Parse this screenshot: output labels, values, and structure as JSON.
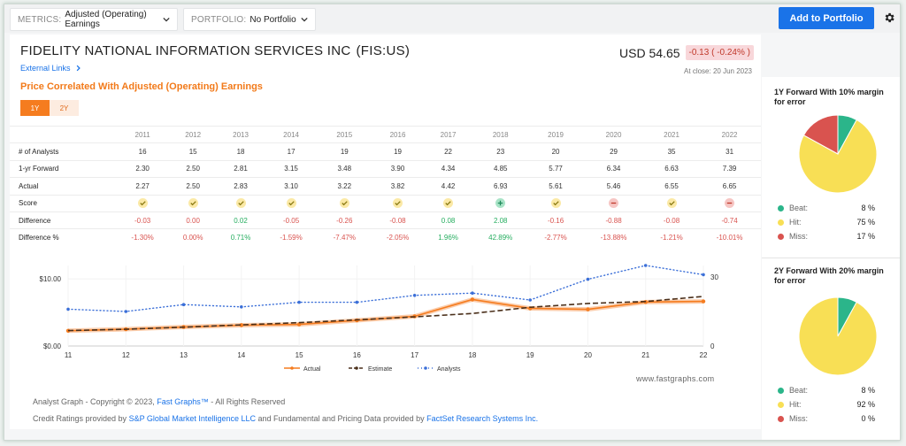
{
  "toolbar": {
    "metrics_label": "METRICS:",
    "metrics_value": "Adjusted (Operating) Earnings",
    "portfolio_label": "PORTFOLIO:",
    "portfolio_value": "No Portfolio",
    "add_button": "Add to Portfolio"
  },
  "header": {
    "company": "FIDELITY NATIONAL INFORMATION SERVICES INC",
    "ticker": "(FIS:US)",
    "external_links": "External Links",
    "price": "USD 54.65",
    "change": "-0.13 ( -0.24% )",
    "close": "At close: 20 Jun 2023"
  },
  "subtitle": "Price Correlated With Adjusted (Operating) Earnings",
  "tabs": [
    {
      "label": "1Y",
      "active": true
    },
    {
      "label": "2Y",
      "active": false
    }
  ],
  "table": {
    "years": [
      "2011",
      "2012",
      "2013",
      "2014",
      "2015",
      "2016",
      "2017",
      "2018",
      "2019",
      "2020",
      "2021",
      "2022"
    ],
    "rows": [
      {
        "label": "# of Analysts",
        "values": [
          "16",
          "15",
          "18",
          "17",
          "19",
          "19",
          "22",
          "23",
          "20",
          "29",
          "35",
          "31"
        ]
      },
      {
        "label": "1-yr Forward",
        "values": [
          "2.30",
          "2.50",
          "2.81",
          "3.15",
          "3.48",
          "3.90",
          "4.34",
          "4.85",
          "5.77",
          "6.34",
          "6.63",
          "7.39"
        ]
      },
      {
        "label": "Actual",
        "values": [
          "2.27",
          "2.50",
          "2.83",
          "3.10",
          "3.22",
          "3.82",
          "4.42",
          "6.93",
          "5.61",
          "5.46",
          "6.55",
          "6.65"
        ]
      }
    ],
    "score_label": "Score",
    "scores": [
      "hit",
      "hit",
      "hit",
      "hit",
      "hit",
      "hit",
      "hit",
      "beat",
      "hit",
      "miss",
      "hit",
      "miss"
    ],
    "difference_label": "Difference",
    "difference": [
      "-0.03",
      "0.00",
      "0.02",
      "-0.05",
      "-0.26",
      "-0.08",
      "0.08",
      "2.08",
      "-0.16",
      "-0.88",
      "-0.08",
      "-0.74"
    ],
    "difference_pct_label": "Difference %",
    "difference_pct": [
      "-1.30%",
      "0.00%",
      "0.71%",
      "-1.59%",
      "-7.47%",
      "-2.05%",
      "1.96%",
      "42.89%",
      "-2.77%",
      "-13.88%",
      "-1.21%",
      "-10.01%"
    ]
  },
  "chart_data": {
    "type": "line",
    "x": [
      "11",
      "12",
      "13",
      "14",
      "15",
      "16",
      "17",
      "18",
      "19",
      "20",
      "21",
      "22"
    ],
    "series": [
      {
        "name": "Actual",
        "values": [
          2.27,
          2.5,
          2.83,
          3.1,
          3.22,
          3.82,
          4.42,
          6.93,
          5.61,
          5.46,
          6.55,
          6.65
        ],
        "color": "#f57c1f"
      },
      {
        "name": "Estimate",
        "values": [
          2.3,
          2.5,
          2.81,
          3.15,
          3.48,
          3.9,
          4.34,
          4.85,
          5.77,
          6.34,
          6.63,
          7.39
        ],
        "color": "#4a2f1a"
      },
      {
        "name": "Analysts",
        "values": [
          16,
          15,
          18,
          17,
          19,
          19,
          22,
          23,
          20,
          29,
          35,
          31
        ],
        "color": "#3b6fd8",
        "axis": "right"
      }
    ],
    "y_left_ticks": [
      "$0.00",
      "$10.00"
    ],
    "y_right_ticks": [
      "0",
      "30"
    ],
    "ylim_left": [
      0,
      12
    ],
    "ylim_right": [
      0,
      35
    ]
  },
  "watermark": "www.fastgraphs.com",
  "footer": {
    "copyright_prefix": "Analyst Graph - Copyright © 2023, ",
    "copyright_link": "Fast Graphs™",
    "copyright_suffix": " - All Rights Reserved",
    "credits_prefix": "Credit Ratings provided by ",
    "credits_link1": "S&P Global Market Intelligence LLC",
    "credits_mid": " and Fundamental and Pricing Data provided by ",
    "credits_link2": "FactSet Research Systems Inc."
  },
  "panels": [
    {
      "title": "1Y Forward With 10% margin for error",
      "slices": [
        {
          "name": "Beat:",
          "pct": 8,
          "label": "8 %",
          "color": "#2bb58a"
        },
        {
          "name": "Hit:",
          "pct": 75,
          "label": "75 %",
          "color": "#f8df55"
        },
        {
          "name": "Miss:",
          "pct": 17,
          "label": "17 %",
          "color": "#d9534f"
        }
      ]
    },
    {
      "title": "2Y Forward With 20% margin for error",
      "slices": [
        {
          "name": "Beat:",
          "pct": 8,
          "label": "8 %",
          "color": "#2bb58a"
        },
        {
          "name": "Hit:",
          "pct": 92,
          "label": "92 %",
          "color": "#f8df55"
        },
        {
          "name": "Miss:",
          "pct": 0,
          "label": "0 %",
          "color": "#d9534f"
        }
      ]
    }
  ]
}
